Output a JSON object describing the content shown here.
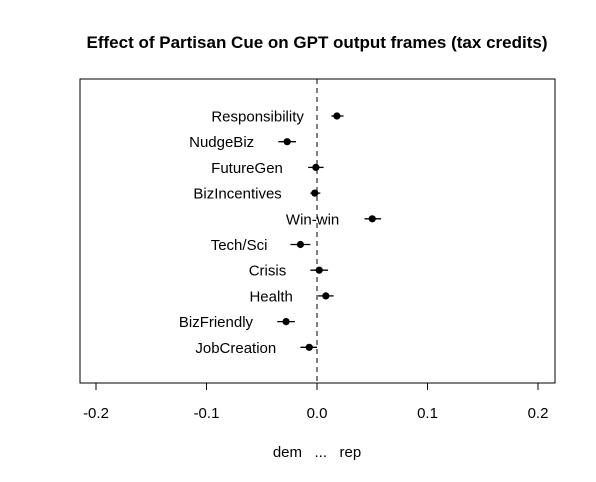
{
  "chart_data": {
    "type": "scatter",
    "title": "Effect of Partisan Cue on GPT output frames (tax credits)",
    "xlabel": "dem   ...   rep",
    "ylabel": "",
    "xlim": [
      -0.2,
      0.2
    ],
    "xticks": [
      -0.2,
      -0.1,
      0.0,
      0.1,
      0.2
    ],
    "xtick_labels": [
      "-0.2",
      "-0.1",
      "0.0",
      "0.1",
      "0.2"
    ],
    "reference_line": 0.0,
    "grid": false,
    "points": [
      {
        "label": "Responsibility",
        "estimate": 0.018,
        "lower": 0.013,
        "upper": 0.024
      },
      {
        "label": "NudgeBiz",
        "estimate": -0.027,
        "lower": -0.035,
        "upper": -0.019
      },
      {
        "label": "FutureGen",
        "estimate": -0.001,
        "lower": -0.008,
        "upper": 0.006
      },
      {
        "label": "BizIncentives",
        "estimate": -0.002,
        "lower": -0.006,
        "upper": 0.003
      },
      {
        "label": "Win-win",
        "estimate": 0.05,
        "lower": 0.043,
        "upper": 0.058
      },
      {
        "label": "Tech/Sci",
        "estimate": -0.015,
        "lower": -0.024,
        "upper": -0.006
      },
      {
        "label": "Crisis",
        "estimate": 0.002,
        "lower": -0.006,
        "upper": 0.01
      },
      {
        "label": "Health",
        "estimate": 0.008,
        "lower": 0.001,
        "upper": 0.015
      },
      {
        "label": "BizFriendly",
        "estimate": -0.028,
        "lower": -0.036,
        "upper": -0.02
      },
      {
        "label": "JobCreation",
        "estimate": -0.007,
        "lower": -0.015,
        "upper": 0.0
      }
    ]
  }
}
